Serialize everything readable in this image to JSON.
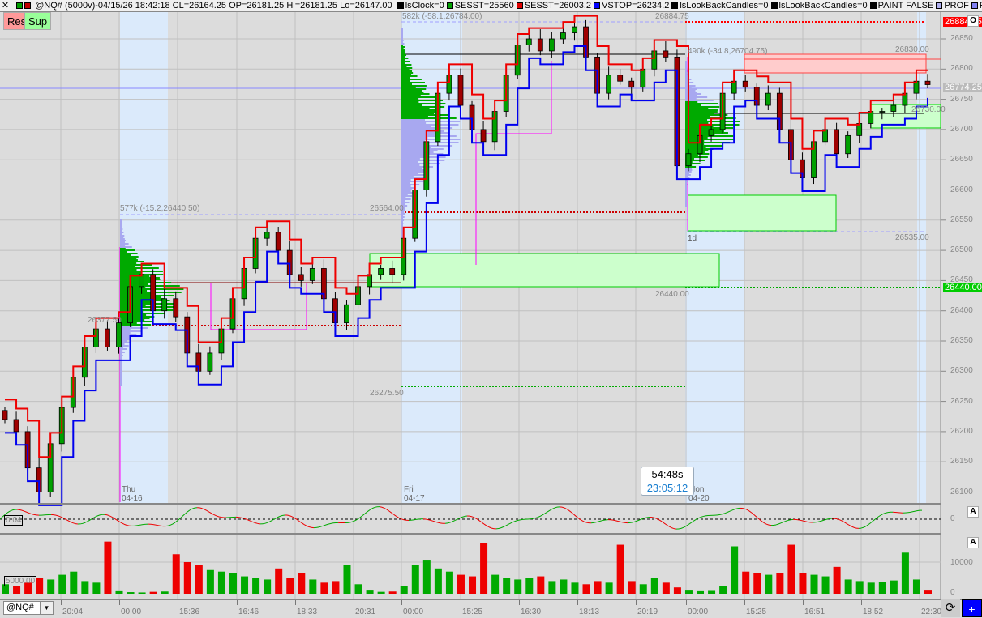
{
  "header": {
    "close_icon": "close-icon",
    "title": "@NQ# (5000v)-04/15/26 18:42:18 CL=26164.25 OP=26181.25 Hi=26181.25 Lo=26147.00",
    "legend": [
      {
        "label": "lsClock=0",
        "color": "#000000"
      },
      {
        "label": "SESST=25560",
        "color": "#00a000"
      },
      {
        "label": "SESST=26003.2",
        "color": "#e00000"
      },
      {
        "label": "VSTOP=26234.2",
        "color": "#0000ff"
      },
      {
        "label": "lsLookBackCandles=0",
        "color": "#000000"
      },
      {
        "label": "lsLookBackCandles=0",
        "color": "#000000"
      },
      {
        "label": "PAINT FALSE",
        "color": "#000000"
      },
      {
        "label": "PROF",
        "color": "#b0b0f0"
      },
      {
        "label": "REF=26",
        "color": "#8080f0"
      }
    ]
  },
  "buttons": {
    "res": "Res",
    "sup": "Sup",
    "res_color": "#ff9999",
    "sup_color": "#99ff99"
  },
  "annotations": {
    "profile1": "577k (-15.2,26440.50)",
    "profile2": "582k (-58.1,26784.00)",
    "profile3": "490k (-34.8,26704.75)",
    "lvl_26884": "26884.75",
    "lvl_26564": "26564.00",
    "lvl_26440": "26440.00",
    "lvl_26377": "26377.50",
    "lvl_26275": "26275.50",
    "lvl_26535": "26535.00",
    "lvl_26830": "26830.00",
    "lvl_26730": "26730.00",
    "lvl_26450": "26450.",
    "tf": "1d",
    "days": [
      {
        "d": "Thu",
        "date": "04-16"
      },
      {
        "d": "Fri",
        "date": "04-17"
      },
      {
        "d": "Mon",
        "date": "04-20"
      }
    ]
  },
  "timer": {
    "remaining": "54:48s",
    "clock": "23:05:12"
  },
  "price_axis": {
    "ticks": [
      "26850",
      "26800",
      "26750",
      "26700",
      "26650",
      "26600",
      "26550",
      "26500",
      "26450",
      "26400",
      "26350",
      "26300",
      "26250",
      "26200",
      "26150",
      "26100"
    ],
    "high_label": "26884.75",
    "high_color": "#ff0000",
    "last_label": "26774.25",
    "support_label": "26440.00",
    "support_color": "#00cc00",
    "o_button": "O"
  },
  "oscillator": {
    "left_label": "0.04",
    "zero_label": "0",
    "a_button": "A"
  },
  "volume_pane": {
    "left_label": "5000.00",
    "ticks": [
      "10000",
      "0"
    ],
    "a_button": "A"
  },
  "time_axis": {
    "labels": [
      "20:04",
      "00:00",
      "15:36",
      "16:46",
      "18:33",
      "20:31",
      "00:00",
      "15:25",
      "16:30",
      "18:13",
      "20:19",
      "00:00",
      "15:25",
      "16:51",
      "18:52",
      "22:30"
    ]
  },
  "bottom": {
    "symbol": "@NQ#",
    "refresh_icon": "refresh-icon",
    "add_icon": "plus-icon"
  },
  "chart_data": {
    "type": "candlestick",
    "ylim": [
      26080,
      26910
    ],
    "closes": [
      26220,
      26200,
      26140,
      26100,
      26180,
      26240,
      26290,
      26340,
      26370,
      26340,
      26380,
      26440,
      26460,
      26400,
      26420,
      26390,
      26330,
      26300,
      26330,
      26370,
      26420,
      26470,
      26520,
      26530,
      26500,
      26460,
      26450,
      26470,
      26420,
      26380,
      26410,
      26440,
      26460,
      26470,
      26460,
      26520,
      26600,
      26680,
      26760,
      26790,
      26740,
      26700,
      26680,
      26730,
      26790,
      26840,
      26850,
      26830,
      26850,
      26860,
      26870,
      26820,
      26760,
      26790,
      26780,
      26770,
      26800,
      26830,
      26820,
      26640,
      26660,
      26690,
      26700,
      26760,
      26780,
      26770,
      26740,
      26760,
      26700,
      26650,
      26620,
      26680,
      26700,
      26660,
      26690,
      26710,
      26730,
      26730,
      26740,
      26760,
      26780,
      26774.25
    ],
    "volume": [
      3000,
      2500,
      3500,
      5000,
      4500,
      6000,
      7000,
      4000,
      3500,
      16500,
      800,
      500,
      400,
      600,
      700,
      12500,
      10000,
      9000,
      7500,
      7000,
      6500,
      5500,
      5000,
      4500,
      8000,
      5000,
      6500,
      4500,
      3500,
      4000,
      9000,
      3000,
      1000,
      600,
      700,
      2500,
      9000,
      10500,
      8000,
      7000,
      6000,
      5500,
      16000,
      6000,
      5000,
      4500,
      5000,
      5500,
      4000,
      4500,
      3500,
      3000,
      4000,
      3500,
      15500,
      4000,
      3000,
      5000,
      3500,
      2000,
      1000,
      800,
      900,
      2500,
      15000,
      7000,
      6500,
      6000,
      6500,
      15500,
      6500,
      6000,
      5500,
      8500,
      4500,
      4000,
      3500,
      3800,
      4200,
      13000,
      4500,
      1000
    ]
  }
}
